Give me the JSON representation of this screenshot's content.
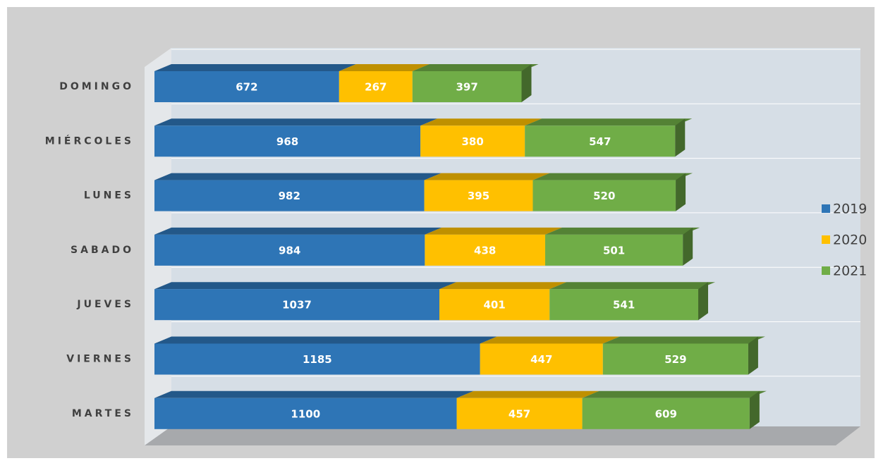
{
  "chart_data": {
    "type": "bar",
    "orientation": "horizontal",
    "stacked": true,
    "categories": [
      "DOMINGO",
      "MIÉRCOLES",
      "LUNES",
      "SABADO",
      "JUEVES",
      "VIERNES",
      "MARTES"
    ],
    "series": [
      {
        "name": "2019",
        "color": "#2e75b6",
        "values": [
          672,
          968,
          982,
          984,
          1037,
          1185,
          1100
        ]
      },
      {
        "name": "2020",
        "color": "#ffc000",
        "values": [
          267,
          380,
          395,
          438,
          401,
          447,
          457
        ]
      },
      {
        "name": "2021",
        "color": "#70ad47",
        "values": [
          397,
          547,
          520,
          501,
          541,
          529,
          609
        ]
      }
    ],
    "legend": "right"
  }
}
